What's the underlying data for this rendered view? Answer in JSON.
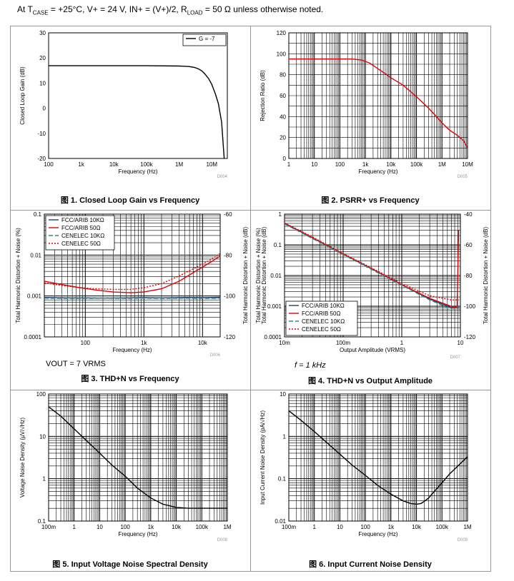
{
  "header": {
    "prefix": "At T",
    "case_sub": "CASE",
    "mid": " = +25°C, V+ = 24 V, IN+ = (V+)/2, R",
    "load_sub": "LOAD",
    "suffix": " = 50 Ω unless otherwise noted."
  },
  "notes": {
    "vout": "VOUT = 7 VRMS",
    "freq": "f = 1 kHz"
  },
  "chart_data": [
    {
      "id": "fig1",
      "type": "line",
      "title": "图 1. Closed Loop Gain vs Frequency",
      "code": "D004",
      "xlabel": "Frequency (Hz)",
      "ylabel": "Closed Loop Gain (dB)",
      "xscale": "log",
      "xlim": [
        100,
        30000000
      ],
      "yscale": "linear",
      "ylim": [
        -20,
        30
      ],
      "xticks": [
        [
          100,
          "100"
        ],
        [
          1000,
          "1k"
        ],
        [
          10000,
          "10k"
        ],
        [
          100000,
          "100k"
        ],
        [
          1000000,
          "1M"
        ],
        [
          10000000,
          "10M"
        ]
      ],
      "yticks": [
        [
          -20,
          "-20"
        ],
        [
          -10,
          "-10"
        ],
        [
          0,
          "0"
        ],
        [
          10,
          "10"
        ],
        [
          20,
          "20"
        ],
        [
          30,
          "30"
        ]
      ],
      "grid": false,
      "legend": {
        "position": "top-right",
        "entries": [
          "G = -7"
        ]
      },
      "series": [
        {
          "name": "G = -7",
          "color": "#000000",
          "dash": "",
          "x": [
            100,
            10000,
            100000,
            1000000,
            2000000,
            3000000,
            4000000,
            5000000,
            6000000,
            8000000,
            10000000,
            13000000,
            16000000,
            20000000,
            24000000
          ],
          "y": [
            16.9,
            16.9,
            16.9,
            16.8,
            16.6,
            16.2,
            15.6,
            14.8,
            13.8,
            11.8,
            9.5,
            5.6,
            1.8,
            -5.5,
            -20
          ]
        }
      ]
    },
    {
      "id": "fig2",
      "type": "line",
      "title": "图 2. PSRR+ vs Frequency",
      "code": "D005",
      "xlabel": "Frequency (Hz)",
      "ylabel": "Rejection Ratio (dB)",
      "xscale": "log",
      "xlim": [
        1,
        10000000
      ],
      "yscale": "linear",
      "ylim": [
        0,
        120
      ],
      "xticks": [
        [
          1,
          "1"
        ],
        [
          10,
          "10"
        ],
        [
          100,
          "100"
        ],
        [
          1000,
          "1k"
        ],
        [
          10000,
          "10k"
        ],
        [
          100000,
          "100k"
        ],
        [
          1000000,
          "1M"
        ],
        [
          10000000,
          "10M"
        ]
      ],
      "yticks": [
        [
          0,
          "0"
        ],
        [
          20,
          "20"
        ],
        [
          40,
          "40"
        ],
        [
          60,
          "60"
        ],
        [
          80,
          "80"
        ],
        [
          100,
          "100"
        ],
        [
          120,
          "120"
        ]
      ],
      "grid": true,
      "legend": null,
      "series": [
        {
          "name": "PSRR+",
          "color": "#e00000",
          "dash": "",
          "x": [
            1,
            10,
            100,
            300,
            700,
            1500,
            3000,
            6000,
            10000,
            30000,
            100000,
            300000,
            1000000,
            2000000,
            4000000,
            7000000,
            10000000
          ],
          "y": [
            95,
            95,
            95,
            95,
            94,
            91,
            86,
            81,
            77,
            70,
            59,
            48,
            34,
            27,
            22,
            17,
            10
          ]
        }
      ]
    },
    {
      "id": "fig3",
      "type": "line",
      "title": "图 3. THD+N vs Frequency",
      "code": "D006",
      "xlabel": "Frequency (Hz)",
      "ylabel": "Total Harmonic Distortion + Noise (%)",
      "y2label": "Total Harmonic Distortion + Noise (dB)",
      "xscale": "log",
      "xlim": [
        20,
        20000
      ],
      "yscale": "log",
      "ylim": [
        0.0001,
        0.1
      ],
      "xticks": [
        [
          100,
          "100"
        ],
        [
          1000,
          "1k"
        ],
        [
          10000,
          "10k"
        ]
      ],
      "yticks": [
        [
          0.0001,
          "0.0001"
        ],
        [
          0.001,
          "0.001"
        ],
        [
          0.01,
          "0.01"
        ],
        [
          0.1,
          "0.1"
        ]
      ],
      "y2ticks": [
        [
          -120,
          "-120"
        ],
        [
          -100,
          "-100"
        ],
        [
          -80,
          "-80"
        ],
        [
          -60,
          "-60"
        ]
      ],
      "grid": true,
      "legend": {
        "position": "top-left",
        "entries": [
          "FCC/ARIB 10KΩ",
          "FCC/ARIB 50Ω",
          "CENELEC 10KΩ",
          "CENELEC 50Ω"
        ]
      },
      "series": [
        {
          "name": "FCC/ARIB 10KΩ",
          "color": "#1f3f6f",
          "dash": "",
          "x": [
            20,
            50,
            100,
            200,
            500,
            1000,
            2000,
            5000,
            10000,
            20000
          ],
          "y": [
            0.00092,
            0.0009,
            0.0009,
            0.00089,
            0.0009,
            0.00091,
            0.0009,
            0.00092,
            0.00091,
            0.00093
          ]
        },
        {
          "name": "FCC/ARIB 50Ω",
          "color": "#e00000",
          "dash": "",
          "x": [
            20,
            40,
            80,
            150,
            300,
            600,
            1000,
            2000,
            4000,
            8000,
            14000,
            20000
          ],
          "y": [
            0.0023,
            0.0019,
            0.0016,
            0.0014,
            0.00125,
            0.0012,
            0.00125,
            0.0015,
            0.0023,
            0.0042,
            0.0068,
            0.0095
          ]
        },
        {
          "name": "CENELEC 10KΩ",
          "color": "#2a8a8a",
          "dash": "6,3",
          "x": [
            20,
            50,
            100,
            200,
            500,
            1000,
            2000,
            5000,
            10000,
            20000
          ],
          "y": [
            0.00088,
            0.00087,
            0.00087,
            0.00088,
            0.00087,
            0.00088,
            0.00087,
            0.00088,
            0.00087,
            0.00088
          ]
        },
        {
          "name": "CENELEC 50Ω",
          "color": "#e00000",
          "dash": "2,2",
          "x": [
            20,
            40,
            80,
            150,
            300,
            600,
            1000,
            2000,
            4000,
            8000,
            14000,
            20000
          ],
          "y": [
            0.0021,
            0.0018,
            0.0016,
            0.0015,
            0.00145,
            0.00145,
            0.0016,
            0.002,
            0.0031,
            0.0051,
            0.0078,
            0.011
          ]
        }
      ]
    },
    {
      "id": "fig4",
      "type": "line",
      "title": "图 4. THD+N vs Output Amplitude",
      "code": "D007",
      "xlabel": "Output Amplitude (VRMS)",
      "ylabel": "Total Harmonic Distortion + Noise (%)",
      "ylabel2": "Total Harmonic Distortion + Noise (dB)",
      "y2label": "Total Harmonic Distortion + Noise (dB)",
      "xscale": "log",
      "xlim": [
        0.01,
        10
      ],
      "yscale": "log",
      "ylim": [
        0.0001,
        1
      ],
      "xticks": [
        [
          0.01,
          "10m"
        ],
        [
          0.1,
          "100m"
        ],
        [
          1,
          "1"
        ],
        [
          10,
          "10"
        ]
      ],
      "yticks": [
        [
          0.0001,
          "0.0001"
        ],
        [
          0.001,
          "0.001"
        ],
        [
          0.01,
          "0.01"
        ],
        [
          0.1,
          "0.1"
        ],
        [
          1,
          "1"
        ]
      ],
      "y2ticks": [
        [
          -120,
          "-120"
        ],
        [
          -100,
          "-100"
        ],
        [
          -80,
          "-80"
        ],
        [
          -60,
          "-60"
        ],
        [
          -40,
          "-40"
        ]
      ],
      "grid": true,
      "legend": {
        "position": "bottom-left",
        "entries": [
          "FCC/ARIB 10KΩ",
          "FCC/ARIB 50Ω",
          "CENELEC 10KΩ",
          "CENELEC 50Ω"
        ]
      },
      "series": [
        {
          "name": "FCC/ARIB 10KΩ",
          "color": "#1f3f6f",
          "dash": "",
          "x": [
            0.01,
            0.03,
            0.1,
            0.3,
            1,
            3,
            7,
            8.5,
            9.5
          ],
          "y": [
            0.5,
            0.17,
            0.05,
            0.017,
            0.005,
            0.0017,
            0.0009,
            0.0009,
            0.0009
          ]
        },
        {
          "name": "FCC/ARIB 50Ω",
          "color": "#e00000",
          "dash": "",
          "x": [
            0.01,
            0.03,
            0.1,
            0.3,
            1,
            3,
            6,
            8,
            8.8,
            9.1,
            9.3
          ],
          "y": [
            0.5,
            0.17,
            0.05,
            0.017,
            0.005,
            0.0018,
            0.0011,
            0.0009,
            0.001,
            0.02,
            0.3
          ]
        },
        {
          "name": "CENELEC 10KΩ",
          "color": "#2a8a8a",
          "dash": "6,3",
          "x": [
            0.01,
            0.03,
            0.1,
            0.3,
            1,
            3,
            7,
            8.5,
            9.5
          ],
          "y": [
            0.48,
            0.16,
            0.048,
            0.016,
            0.0048,
            0.0016,
            0.0008,
            0.0008,
            0.0008
          ]
        },
        {
          "name": "CENELEC 50Ω",
          "color": "#e00000",
          "dash": "2,2",
          "x": [
            0.01,
            0.03,
            0.1,
            0.3,
            1,
            3,
            7,
            9,
            9.5
          ],
          "y": [
            0.52,
            0.18,
            0.052,
            0.018,
            0.0055,
            0.0022,
            0.0016,
            0.0016,
            0.0016
          ]
        }
      ]
    },
    {
      "id": "fig5",
      "type": "line",
      "title": "图 5. Input Voltage Noise Spectral Density",
      "code": "D008",
      "xlabel": "Frequency (Hz)",
      "ylabel": "Voltage Noise Density (µV/√Hz)",
      "xscale": "log",
      "xlim": [
        0.1,
        1000000
      ],
      "yscale": "log",
      "ylim": [
        0.1,
        100
      ],
      "xticks": [
        [
          0.1,
          "100m"
        ],
        [
          1,
          "1"
        ],
        [
          10,
          "10"
        ],
        [
          100,
          "100"
        ],
        [
          1000,
          "1k"
        ],
        [
          10000,
          "10k"
        ],
        [
          100000,
          "100k"
        ],
        [
          1000000,
          "1M"
        ]
      ],
      "yticks": [
        [
          0.1,
          "0.1"
        ],
        [
          1,
          "1"
        ],
        [
          10,
          "10"
        ],
        [
          100,
          "100"
        ]
      ],
      "grid": true,
      "legend": null,
      "series": [
        {
          "name": "Voltage noise",
          "color": "#000000",
          "dash": "",
          "x": [
            0.1,
            0.3,
            1,
            3,
            10,
            30,
            100,
            300,
            1000,
            3000,
            10000,
            30000,
            100000,
            1000000
          ],
          "y": [
            50,
            30,
            15,
            8,
            4,
            2.1,
            1.15,
            0.6,
            0.35,
            0.25,
            0.21,
            0.2,
            0.2,
            0.2
          ]
        }
      ]
    },
    {
      "id": "fig6",
      "type": "line",
      "title": "图 6. Input Current Noise Density",
      "code": "D009",
      "xlabel": "Frequency (Hz)",
      "ylabel": "Input Current Noise Density (pA/√Hz)",
      "xscale": "log",
      "xlim": [
        0.1,
        1000000
      ],
      "yscale": "log",
      "ylim": [
        0.01,
        10
      ],
      "xticks": [
        [
          0.1,
          "100m"
        ],
        [
          1,
          "1"
        ],
        [
          10,
          "10"
        ],
        [
          100,
          "100"
        ],
        [
          1000,
          "1k"
        ],
        [
          10000,
          "10k"
        ],
        [
          100000,
          "100k"
        ],
        [
          1000000,
          "1M"
        ]
      ],
      "yticks": [
        [
          0.01,
          "0.01"
        ],
        [
          0.1,
          "0.1"
        ],
        [
          1,
          "1"
        ],
        [
          10,
          "10"
        ]
      ],
      "grid": true,
      "legend": null,
      "series": [
        {
          "name": "Current noise",
          "color": "#000000",
          "dash": "",
          "x": [
            0.1,
            0.3,
            1,
            3,
            10,
            30,
            100,
            300,
            1000,
            3000,
            6000,
            10000,
            15000,
            20000,
            30000,
            50000,
            100000,
            200000,
            500000,
            1000000
          ],
          "y": [
            4,
            2.4,
            1.3,
            0.72,
            0.38,
            0.21,
            0.12,
            0.07,
            0.043,
            0.03,
            0.026,
            0.025,
            0.026,
            0.029,
            0.035,
            0.05,
            0.08,
            0.13,
            0.22,
            0.33
          ]
        }
      ]
    }
  ]
}
